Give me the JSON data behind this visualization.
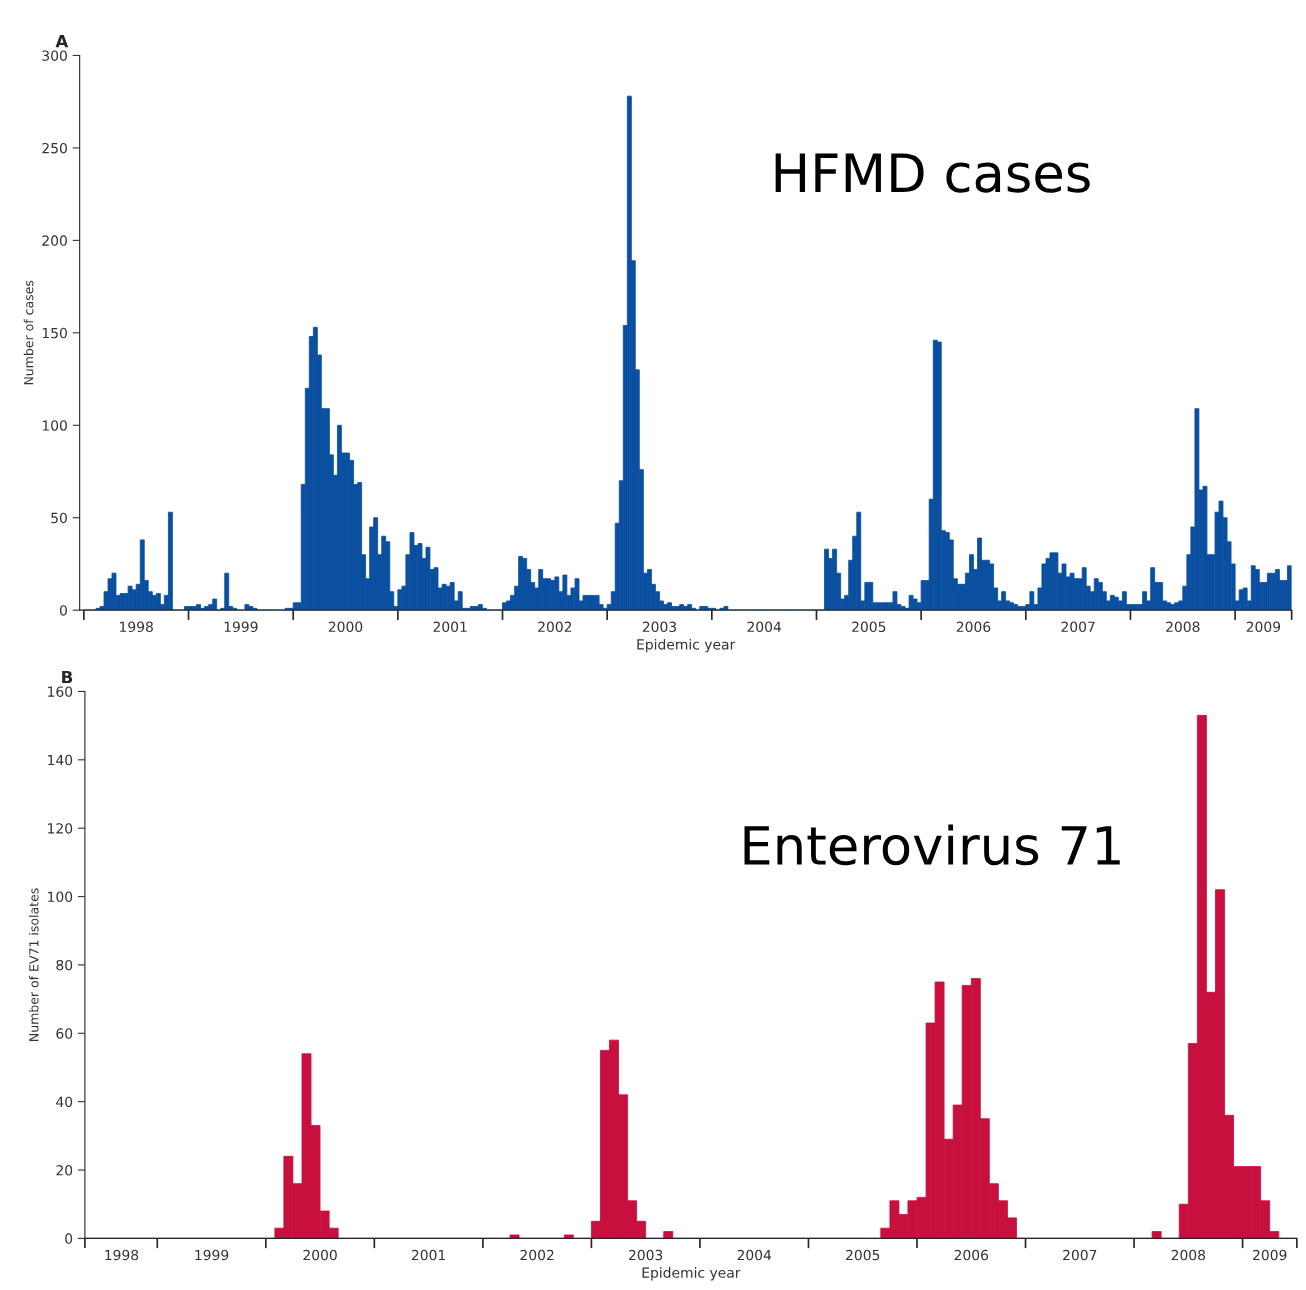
{
  "chart_data": [
    {
      "type": "bar",
      "title": "A",
      "xlabel": "Epidemic year",
      "ylabel": "Number of cases",
      "annotations": [
        "HFMD cases"
      ],
      "xlim": [
        1997.46,
        2009.04
      ],
      "ylim": [
        0,
        300
      ],
      "yticks": [
        0,
        50,
        100,
        150,
        200,
        250,
        300
      ],
      "xticks": [
        {
          "value": 1997.5,
          "label": null
        },
        1998,
        {
          "value": 1998.5,
          "label": null
        },
        1999,
        {
          "value": 1999.5,
          "label": null
        },
        2000,
        {
          "value": 2000.5,
          "label": null
        },
        2001,
        {
          "value": 2001.5,
          "label": null
        },
        2002,
        {
          "value": 2002.5,
          "label": null
        },
        2003,
        {
          "value": 2003.5,
          "label": null
        },
        2004,
        {
          "value": 2004.5,
          "label": null
        },
        2005,
        {
          "value": 2005.5,
          "label": null
        },
        2006,
        {
          "value": 2006.5,
          "label": null
        },
        2007,
        {
          "value": 2007.5,
          "label": null
        },
        2008,
        {
          "value": 2008.5,
          "label": null
        },
        {
          "value": 2008.77,
          "label": "2009"
        },
        {
          "value": 2009.04,
          "label": null
        }
      ],
      "series": [
        {
          "color": "#0b4fa0",
          "x": [
            1997.519,
            1997.558,
            1997.596,
            1997.635,
            1997.673,
            1997.712,
            1997.75,
            1997.788,
            1997.827,
            1997.865,
            1997.904,
            1997.942,
            1997.981,
            1998.019,
            1998.058,
            1998.096,
            1998.135,
            1998.173,
            1998.212,
            1998.25,
            1998.288,
            1998.327,
            1998.365,
            1998.404,
            1998.442,
            1998.481,
            1998.519,
            1998.558,
            1998.596,
            1998.635,
            1998.673,
            1998.712,
            1998.75,
            1998.788,
            1998.827,
            1998.865,
            1998.904,
            1998.942,
            1998.981,
            1999.019,
            1999.058,
            1999.096,
            1999.135,
            1999.173,
            1999.212,
            1999.25,
            1999.288,
            1999.327,
            1999.365,
            1999.404,
            1999.442,
            1999.481,
            1999.519,
            1999.558,
            1999.596,
            1999.635,
            1999.673,
            1999.712,
            1999.75,
            1999.788,
            1999.827,
            1999.865,
            1999.904,
            1999.942,
            1999.981,
            2000.019,
            2000.058,
            2000.096,
            2000.135,
            2000.173,
            2000.212,
            2000.25,
            2000.288,
            2000.327,
            2000.365,
            2000.404,
            2000.442,
            2000.481,
            2000.519,
            2000.558,
            2000.596,
            2000.635,
            2000.673,
            2000.712,
            2000.75,
            2000.788,
            2000.827,
            2000.865,
            2000.904,
            2000.942,
            2000.981,
            2001.019,
            2001.058,
            2001.096,
            2001.135,
            2001.173,
            2001.212,
            2001.25,
            2001.288,
            2001.327,
            2001.365,
            2001.404,
            2001.442,
            2001.481,
            2001.519,
            2001.558,
            2001.596,
            2001.635,
            2001.673,
            2001.712,
            2001.75,
            2001.788,
            2001.827,
            2001.865,
            2001.904,
            2001.942,
            2001.981,
            2002.019,
            2002.058,
            2002.096,
            2002.135,
            2002.173,
            2002.212,
            2002.25,
            2002.288,
            2002.327,
            2002.365,
            2002.404,
            2002.442,
            2002.481,
            2002.519,
            2002.558,
            2002.596,
            2002.635,
            2002.673,
            2002.712,
            2002.75,
            2002.788,
            2002.827,
            2002.865,
            2002.904,
            2002.942,
            2002.981,
            2003.019,
            2003.058,
            2003.096,
            2003.135,
            2003.173,
            2003.212,
            2003.25,
            2003.288,
            2003.327,
            2003.365,
            2003.404,
            2003.442,
            2003.481,
            2003.519,
            2003.558,
            2003.596,
            2003.635,
            2003.673,
            2003.712,
            2003.75,
            2003.788,
            2003.827,
            2003.865,
            2003.904,
            2003.942,
            2003.981,
            2004.019,
            2004.058,
            2004.096,
            2004.135,
            2004.173,
            2004.212,
            2004.25,
            2004.288,
            2004.327,
            2004.365,
            2004.404,
            2004.442,
            2004.481,
            2004.519,
            2004.558,
            2004.596,
            2004.635,
            2004.673,
            2004.712,
            2004.75,
            2004.788,
            2004.827,
            2004.865,
            2004.904,
            2004.942,
            2004.981,
            2005.019,
            2005.058,
            2005.096,
            2005.135,
            2005.173,
            2005.212,
            2005.25,
            2005.288,
            2005.327,
            2005.365,
            2005.404,
            2005.442,
            2005.481,
            2005.519,
            2005.558,
            2005.596,
            2005.635,
            2005.673,
            2005.712,
            2005.75,
            2005.788,
            2005.827,
            2005.865,
            2005.904,
            2005.942,
            2005.981,
            2006.019,
            2006.058,
            2006.096,
            2006.135,
            2006.173,
            2006.212,
            2006.25,
            2006.288,
            2006.327,
            2006.365,
            2006.404,
            2006.442,
            2006.481,
            2006.519,
            2006.558,
            2006.596,
            2006.635,
            2006.673,
            2006.712,
            2006.75,
            2006.788,
            2006.827,
            2006.865,
            2006.904,
            2006.942,
            2006.981,
            2007.019,
            2007.058,
            2007.096,
            2007.135,
            2007.173,
            2007.212,
            2007.25,
            2007.288,
            2007.327,
            2007.365,
            2007.404,
            2007.442,
            2007.481,
            2007.519,
            2007.558,
            2007.596,
            2007.635,
            2007.673,
            2007.712,
            2007.75,
            2007.788,
            2007.827,
            2007.865,
            2007.904,
            2007.942,
            2007.981,
            2008.019,
            2008.058,
            2008.096,
            2008.135,
            2008.173,
            2008.212,
            2008.25,
            2008.288,
            2008.327,
            2008.365,
            2008.404,
            2008.442,
            2008.481,
            2008.519,
            2008.558,
            2008.596,
            2008.635,
            2008.673,
            2008.712,
            2008.75,
            2008.788,
            2008.827,
            2008.865,
            2008.904,
            2008.942,
            2008.981,
            2009.019
          ],
          "values": [
            0,
            0,
            0,
            1,
            2,
            10,
            17,
            20,
            8,
            9,
            9,
            13,
            11,
            14,
            38,
            16,
            10,
            8,
            9,
            3,
            8,
            53,
            0,
            0,
            0,
            2,
            2,
            2,
            3,
            1,
            2,
            3,
            6,
            0,
            1,
            20,
            2,
            1,
            0,
            0,
            3,
            2,
            1,
            0,
            0,
            0,
            0,
            0,
            0,
            0,
            1,
            1,
            4,
            4,
            68,
            120,
            148,
            153,
            138,
            109,
            109,
            84,
            73,
            100,
            85,
            85,
            81,
            68,
            69,
            30,
            17,
            45,
            50,
            30,
            40,
            37,
            10,
            2,
            11,
            13,
            30,
            42,
            35,
            36,
            28,
            34,
            22,
            23,
            12,
            14,
            13,
            15,
            5,
            10,
            1,
            1,
            2,
            2,
            3,
            1,
            0,
            0,
            0,
            0,
            4,
            5,
            8,
            13,
            29,
            28,
            22,
            15,
            12,
            22,
            17,
            17,
            16,
            18,
            10,
            19,
            8,
            12,
            17,
            5,
            8,
            8,
            8,
            8,
            3,
            1,
            3,
            10,
            47,
            70,
            154,
            278,
            189,
            130,
            76,
            20,
            22,
            14,
            10,
            5,
            3,
            4,
            2,
            2,
            3,
            2,
            3,
            1,
            0,
            2,
            2,
            1,
            1,
            0,
            1,
            2,
            0,
            0,
            0,
            0,
            0,
            0,
            0,
            0,
            0,
            0,
            0,
            0,
            0,
            0,
            0,
            0,
            0,
            0,
            0,
            0,
            0,
            0,
            0,
            0,
            33,
            28,
            33,
            20,
            6,
            8,
            27,
            40,
            53,
            5,
            15,
            15,
            4,
            4,
            4,
            4,
            4,
            10,
            3,
            2,
            1,
            8,
            6,
            4,
            16,
            16,
            60,
            146,
            145,
            43,
            42,
            38,
            17,
            14,
            14,
            20,
            30,
            22,
            39,
            27,
            27,
            25,
            12,
            5,
            10,
            5,
            4,
            3,
            2,
            2,
            3,
            10,
            3,
            12,
            25,
            28,
            31,
            31,
            20,
            25,
            18,
            20,
            17,
            17,
            23,
            13,
            10,
            17,
            15,
            10,
            5,
            8,
            7,
            5,
            10,
            3,
            3,
            3,
            3,
            10,
            5,
            23,
            15,
            15,
            5,
            4,
            3,
            4,
            5,
            13,
            30,
            45,
            109,
            65,
            67,
            30,
            30,
            53,
            59,
            50,
            37,
            25,
            5,
            11,
            12,
            5,
            24,
            22,
            15,
            15,
            20,
            20,
            22,
            16,
            16,
            24
          ]
        }
      ]
    },
    {
      "type": "bar",
      "title": "B",
      "xlabel": "Epidemic year",
      "ylabel": "Number of EV71 isolates",
      "annotations": [
        "Enterovirus 71"
      ],
      "xlim": [
        1997.833,
        2009.0
      ],
      "ylim": [
        0,
        160
      ],
      "yticks": [
        0,
        20,
        40,
        60,
        80,
        100,
        120,
        140,
        160
      ],
      "xticks": [
        {
          "value": 1997.833,
          "label": null
        },
        {
          "value": 1998.17,
          "label": "1998"
        },
        {
          "value": 1998.5,
          "label": null
        },
        1999,
        {
          "value": 1999.5,
          "label": null
        },
        2000,
        {
          "value": 2000.5,
          "label": null
        },
        2001,
        {
          "value": 2001.5,
          "label": null
        },
        2002,
        {
          "value": 2002.5,
          "label": null
        },
        2003,
        {
          "value": 2003.5,
          "label": null
        },
        2004,
        {
          "value": 2004.5,
          "label": null
        },
        2005,
        {
          "value": 2005.5,
          "label": null
        },
        2006,
        {
          "value": 2006.5,
          "label": null
        },
        2007,
        {
          "value": 2007.5,
          "label": null
        },
        2008,
        {
          "value": 2008.5,
          "label": null
        },
        {
          "value": 2008.75,
          "label": "2009"
        },
        {
          "value": 2009.0,
          "label": null
        }
      ],
      "series": [
        {
          "color": "#c8103e",
          "x": [
            1997.875,
            1997.958,
            1998.042,
            1998.125,
            1998.208,
            1998.292,
            1998.375,
            1998.458,
            1998.542,
            1998.625,
            1998.708,
            1998.792,
            1998.875,
            1998.958,
            1999.042,
            1999.125,
            1999.208,
            1999.292,
            1999.375,
            1999.458,
            1999.542,
            1999.625,
            1999.708,
            1999.792,
            1999.875,
            1999.958,
            2000.042,
            2000.125,
            2000.208,
            2000.292,
            2000.375,
            2000.458,
            2000.542,
            2000.625,
            2000.708,
            2000.792,
            2000.875,
            2000.958,
            2001.042,
            2001.125,
            2001.208,
            2001.292,
            2001.375,
            2001.458,
            2001.542,
            2001.625,
            2001.708,
            2001.792,
            2001.875,
            2001.958,
            2002.042,
            2002.125,
            2002.208,
            2002.292,
            2002.375,
            2002.458,
            2002.542,
            2002.625,
            2002.708,
            2002.792,
            2002.875,
            2002.958,
            2003.042,
            2003.125,
            2003.208,
            2003.292,
            2003.375,
            2003.458,
            2003.542,
            2003.625,
            2003.708,
            2003.792,
            2003.875,
            2003.958,
            2004.042,
            2004.125,
            2004.208,
            2004.292,
            2004.375,
            2004.458,
            2004.542,
            2004.625,
            2004.708,
            2004.792,
            2004.875,
            2004.958,
            2005.042,
            2005.125,
            2005.208,
            2005.292,
            2005.375,
            2005.458,
            2005.542,
            2005.625,
            2005.708,
            2005.792,
            2005.875,
            2005.958,
            2006.042,
            2006.125,
            2006.208,
            2006.292,
            2006.375,
            2006.458,
            2006.542,
            2006.625,
            2006.708,
            2006.792,
            2006.875,
            2006.958,
            2007.042,
            2007.125,
            2007.208,
            2007.292,
            2007.375,
            2007.458,
            2007.542,
            2007.625,
            2007.708,
            2007.792,
            2007.875,
            2007.958,
            2008.042,
            2008.125,
            2008.208,
            2008.292,
            2008.375,
            2008.458,
            2008.542,
            2008.625,
            2008.708,
            2008.792,
            2008.875,
            2008.958
          ],
          "values": [
            0,
            0,
            0,
            0,
            0,
            0,
            0,
            0,
            0,
            0,
            0,
            0,
            0,
            0,
            0,
            0,
            0,
            0,
            0,
            0,
            0,
            3,
            24,
            16,
            54,
            33,
            8,
            3,
            0,
            0,
            0,
            0,
            0,
            0,
            0,
            0,
            0,
            0,
            0,
            0,
            0,
            0,
            0,
            0,
            0,
            0,
            0,
            1,
            0,
            0,
            0,
            0,
            0,
            1,
            0,
            0,
            5,
            55,
            58,
            42,
            11,
            5,
            0,
            0,
            2,
            0,
            0,
            0,
            0,
            0,
            0,
            0,
            0,
            0,
            0,
            0,
            0,
            0,
            0,
            0,
            0,
            0,
            0,
            0,
            0,
            0,
            0,
            0,
            3,
            11,
            7,
            11,
            12,
            63,
            75,
            29,
            39,
            74,
            76,
            35,
            16,
            11,
            6,
            0,
            0,
            0,
            0,
            0,
            0,
            0,
            0,
            0,
            0,
            0,
            0,
            0,
            0,
            0,
            2,
            0,
            0,
            10,
            57,
            153,
            72,
            102,
            36,
            21,
            21,
            21,
            11,
            2,
            0,
            0
          ]
        }
      ]
    }
  ]
}
